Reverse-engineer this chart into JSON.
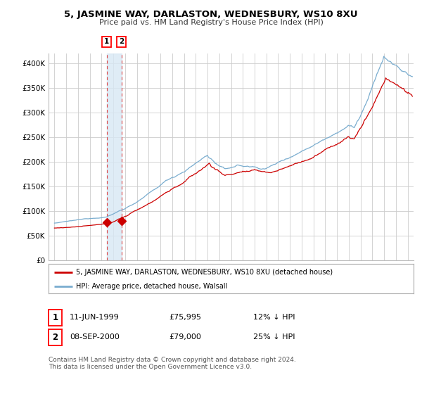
{
  "title": "5, JASMINE WAY, DARLASTON, WEDNESBURY, WS10 8XU",
  "subtitle": "Price paid vs. HM Land Registry's House Price Index (HPI)",
  "legend_line1": "5, JASMINE WAY, DARLASTON, WEDNESBURY, WS10 8XU (detached house)",
  "legend_line2": "HPI: Average price, detached house, Walsall",
  "footnote": "Contains HM Land Registry data © Crown copyright and database right 2024.\nThis data is licensed under the Open Government Licence v3.0.",
  "sale1_date": "11-JUN-1999",
  "sale1_price": "£75,995",
  "sale1_hpi": "12% ↓ HPI",
  "sale2_date": "08-SEP-2000",
  "sale2_price": "£79,000",
  "sale2_hpi": "25% ↓ HPI",
  "sale1_x": 1999.44,
  "sale1_y": 75995,
  "sale2_x": 2000.69,
  "sale2_y": 79000,
  "red_color": "#cc0000",
  "blue_color": "#7aadcf",
  "bg_color": "#ffffff",
  "grid_color": "#cccccc",
  "dashed_color": "#dd4444",
  "shade_color": "#d8e8f4",
  "ylim_min": 0,
  "ylim_max": 420000,
  "xlim_min": 1994.5,
  "xlim_max": 2025.5,
  "yticks": [
    0,
    50000,
    100000,
    150000,
    200000,
    250000,
    300000,
    350000,
    400000
  ],
  "ylabels": [
    "£0",
    "£50K",
    "£100K",
    "£150K",
    "£200K",
    "£250K",
    "£300K",
    "£350K",
    "£400K"
  ]
}
